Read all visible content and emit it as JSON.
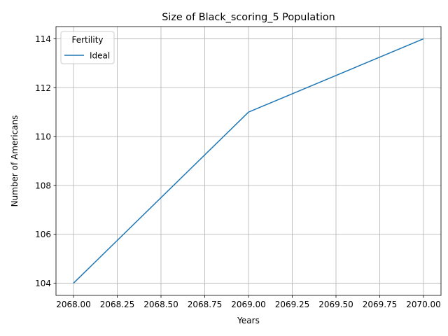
{
  "chart_data": {
    "type": "line",
    "title": "Size of Black_scoring_5 Population",
    "xlabel": "Years",
    "ylabel": "Number of Americans",
    "x": [
      2068,
      2069,
      2070
    ],
    "series": [
      {
        "name": "Ideal",
        "values": [
          104,
          111,
          114
        ],
        "color": "#1f77b4"
      }
    ],
    "xlim": [
      2067.9,
      2070.1
    ],
    "ylim": [
      103.5,
      114.5
    ],
    "xticks": [
      "2068.00",
      "2068.25",
      "2068.50",
      "2068.75",
      "2069.00",
      "2069.25",
      "2069.50",
      "2069.75",
      "2070.00"
    ],
    "yticks": [
      "104",
      "106",
      "108",
      "110",
      "112",
      "114"
    ],
    "legend": {
      "title": "Fertility",
      "placement": "top-left"
    },
    "grid": true
  }
}
